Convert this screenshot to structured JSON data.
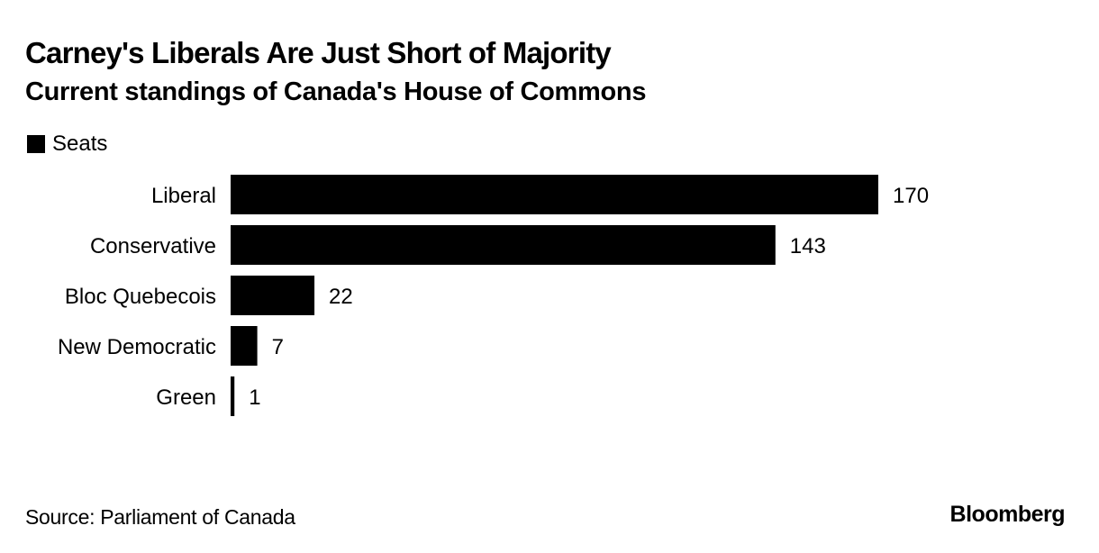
{
  "chart_data": {
    "type": "bar",
    "orientation": "horizontal",
    "title": "Carney's Liberals Are Just Short of Majority",
    "subtitle": "Current standings of Canada's House of Commons",
    "categories": [
      "Liberal",
      "Conservative",
      "Bloc Quebecois",
      "New Democratic",
      "Green"
    ],
    "series": [
      {
        "name": "Seats",
        "color": "#000000",
        "values": [
          170,
          143,
          22,
          7,
          1
        ]
      }
    ],
    "data_labels": [
      "170",
      "143",
      "22",
      "7",
      "1"
    ],
    "xlabel": "",
    "ylabel": "",
    "xlim": [
      0,
      170
    ],
    "grid": false,
    "legend": {
      "position": "top-left",
      "entries": [
        "Seats"
      ]
    }
  },
  "footer": {
    "source": "Source: Parliament of Canada",
    "brand": "Bloomberg"
  }
}
